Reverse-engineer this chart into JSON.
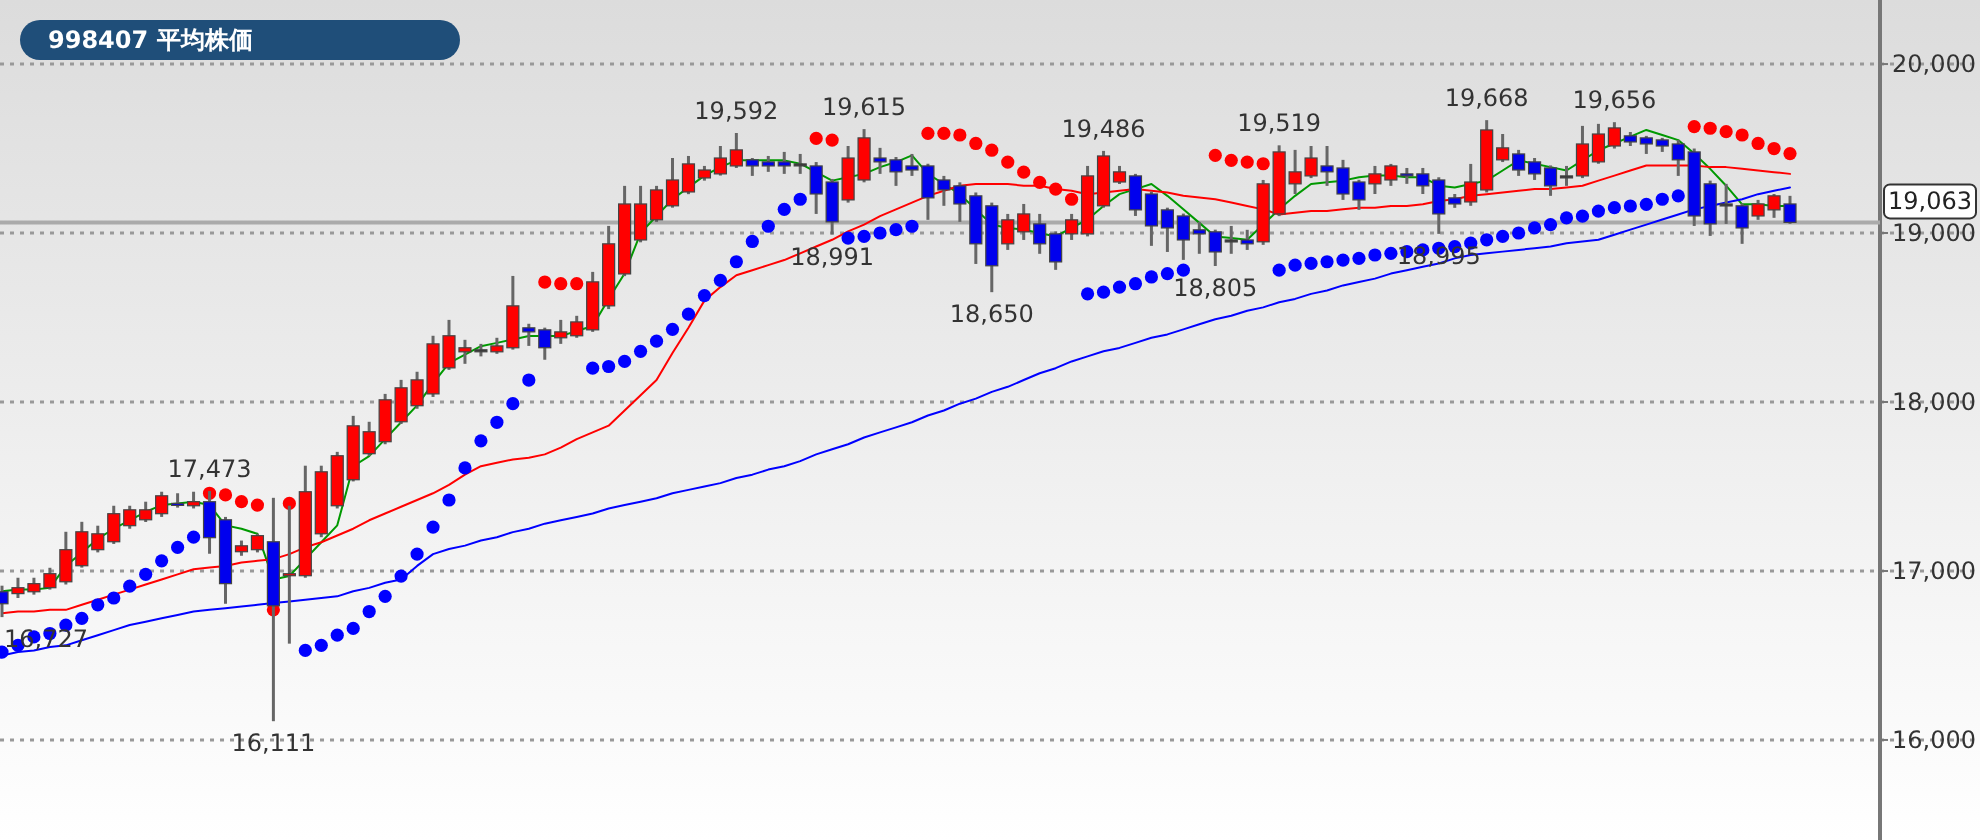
{
  "chart_data": {
    "type": "candlestick",
    "title": "998407 平均株価",
    "categories": [
      null,
      null,
      null,
      null,
      null,
      null,
      null,
      null,
      null,
      null,
      null,
      null,
      null,
      null,
      null,
      null,
      null,
      null,
      null,
      null,
      null,
      null,
      null,
      null,
      null,
      null,
      null,
      null,
      null,
      null,
      null,
      null,
      null,
      null,
      null,
      null,
      null,
      null,
      null,
      null,
      null,
      null,
      null,
      null,
      null,
      null,
      null,
      null,
      null,
      null,
      null,
      null,
      null,
      null,
      null,
      null,
      null,
      null,
      null,
      null,
      null,
      null,
      null,
      null,
      null,
      null,
      null,
      null,
      null,
      null,
      null,
      null,
      null,
      null,
      null,
      null,
      null,
      null,
      null,
      null,
      null,
      null,
      null,
      null,
      null,
      null,
      null,
      null,
      null,
      null,
      null,
      null,
      null,
      null,
      null,
      null,
      null,
      null,
      null,
      null,
      null,
      null,
      null,
      null,
      null,
      null,
      null,
      null,
      null,
      null,
      null,
      null,
      null
    ],
    "ohlc": [
      [
        16877,
        16913,
        16727,
        16806
      ],
      [
        16866,
        16960,
        16840,
        16901
      ],
      [
        16877,
        16960,
        16860,
        16925
      ],
      [
        16901,
        17019,
        16890,
        16984
      ],
      [
        16936,
        17232,
        16920,
        17126
      ],
      [
        17031,
        17291,
        17020,
        17232
      ],
      [
        17126,
        17268,
        17110,
        17220
      ],
      [
        17173,
        17386,
        17160,
        17339
      ],
      [
        17268,
        17386,
        17250,
        17362
      ],
      [
        17303,
        17410,
        17290,
        17362
      ],
      [
        17339,
        17469,
        17320,
        17445
      ],
      [
        17400,
        17460,
        17375,
        17398
      ],
      [
        17386,
        17469,
        17370,
        17410
      ],
      [
        17410,
        17473,
        17102,
        17197
      ],
      [
        17303,
        17320,
        16806,
        16925
      ],
      [
        17114,
        17180,
        17090,
        17149
      ],
      [
        17126,
        17220,
        17110,
        17209
      ],
      [
        17173,
        17433,
        16111,
        16794
      ],
      [
        16972,
        17386,
        16570,
        16984
      ],
      [
        16972,
        17623,
        16960,
        17469
      ],
      [
        17220,
        17623,
        17200,
        17587
      ],
      [
        17386,
        17705,
        17370,
        17682
      ],
      [
        17540,
        17918,
        17530,
        17859
      ],
      [
        17694,
        17883,
        17680,
        17824
      ],
      [
        17765,
        18048,
        17750,
        18013
      ],
      [
        17883,
        18131,
        17870,
        18084
      ],
      [
        17978,
        18179,
        17960,
        18131
      ],
      [
        18048,
        18392,
        18030,
        18344
      ],
      [
        18202,
        18486,
        18190,
        18392
      ],
      [
        18297,
        18368,
        18226,
        18321
      ],
      [
        18309,
        18344,
        18270,
        18309
      ],
      [
        18297,
        18380,
        18285,
        18332
      ],
      [
        18321,
        18746,
        18310,
        18569
      ],
      [
        18439,
        18463,
        18332,
        18415
      ],
      [
        18427,
        18440,
        18250,
        18321
      ],
      [
        18380,
        18486,
        18344,
        18415
      ],
      [
        18392,
        18510,
        18380,
        18474
      ],
      [
        18427,
        18770,
        18415,
        18711
      ],
      [
        18569,
        19042,
        18550,
        18936
      ],
      [
        18758,
        19279,
        18745,
        19172
      ],
      [
        18959,
        19279,
        18945,
        19172
      ],
      [
        19078,
        19279,
        19065,
        19255
      ],
      [
        19161,
        19444,
        19150,
        19314
      ],
      [
        19243,
        19456,
        19230,
        19409
      ],
      [
        19326,
        19397,
        19310,
        19373
      ],
      [
        19350,
        19515,
        19340,
        19444
      ],
      [
        19397,
        19592,
        19385,
        19492
      ],
      [
        19433,
        19444,
        19338,
        19397
      ],
      [
        19421,
        19456,
        19362,
        19397
      ],
      [
        19421,
        19480,
        19350,
        19397
      ],
      [
        19409,
        19468,
        19350,
        19409
      ],
      [
        19397,
        19420,
        19113,
        19231
      ],
      [
        19302,
        19320,
        18991,
        19066
      ],
      [
        19196,
        19515,
        19180,
        19444
      ],
      [
        19314,
        19615,
        19300,
        19563
      ],
      [
        19444,
        19504,
        19350,
        19421
      ],
      [
        19433,
        19450,
        19279,
        19362
      ],
      [
        19397,
        19468,
        19338,
        19373
      ],
      [
        19397,
        19410,
        19078,
        19208
      ],
      [
        19314,
        19338,
        19161,
        19255
      ],
      [
        19279,
        19300,
        19066,
        19172
      ],
      [
        19220,
        19240,
        18817,
        18936
      ],
      [
        19161,
        19180,
        18650,
        18806
      ],
      [
        18936,
        19113,
        18900,
        19078
      ],
      [
        19007,
        19172,
        18959,
        19113
      ],
      [
        19054,
        19113,
        18877,
        18936
      ],
      [
        18995,
        19010,
        18782,
        18829
      ],
      [
        18995,
        19113,
        18959,
        19078
      ],
      [
        18995,
        19397,
        18980,
        19338
      ],
      [
        19161,
        19486,
        19150,
        19456
      ],
      [
        19302,
        19397,
        19290,
        19362
      ],
      [
        19338,
        19350,
        19101,
        19137
      ],
      [
        19231,
        19245,
        18924,
        19042
      ],
      [
        19137,
        19150,
        18888,
        19030
      ],
      [
        19101,
        19115,
        18841,
        18959
      ],
      [
        19019,
        19066,
        18877,
        18995
      ],
      [
        19007,
        19020,
        18805,
        18888
      ],
      [
        18959,
        19042,
        18877,
        18959
      ],
      [
        18959,
        19019,
        18900,
        18936
      ],
      [
        18948,
        19314,
        18930,
        19291
      ],
      [
        19113,
        19519,
        19100,
        19480
      ],
      [
        19291,
        19492,
        19231,
        19362
      ],
      [
        19338,
        19515,
        19325,
        19444
      ],
      [
        19397,
        19515,
        19279,
        19362
      ],
      [
        19385,
        19433,
        19196,
        19231
      ],
      [
        19302,
        19315,
        19137,
        19196
      ],
      [
        19291,
        19397,
        19231,
        19350
      ],
      [
        19314,
        19409,
        19279,
        19397
      ],
      [
        19350,
        19385,
        19291,
        19338
      ],
      [
        19350,
        19385,
        19231,
        19279
      ],
      [
        19314,
        19330,
        18995,
        19113
      ],
      [
        19208,
        19231,
        19149,
        19172
      ],
      [
        19184,
        19409,
        19161,
        19302
      ],
      [
        19255,
        19668,
        19240,
        19610
      ],
      [
        19433,
        19586,
        19420,
        19504
      ],
      [
        19468,
        19492,
        19338,
        19373
      ],
      [
        19421,
        19444,
        19314,
        19350
      ],
      [
        19385,
        19400,
        19220,
        19279
      ],
      [
        19338,
        19397,
        19279,
        19338
      ],
      [
        19338,
        19634,
        19325,
        19527
      ],
      [
        19421,
        19646,
        19410,
        19586
      ],
      [
        19515,
        19656,
        19500,
        19622
      ],
      [
        19575,
        19598,
        19515,
        19539
      ],
      [
        19563,
        19575,
        19468,
        19527
      ],
      [
        19551,
        19563,
        19480,
        19515
      ],
      [
        19527,
        19551,
        19338,
        19433
      ],
      [
        19480,
        19500,
        19042,
        19101
      ],
      [
        19291,
        19310,
        18983,
        19054
      ],
      [
        19172,
        19291,
        19054,
        19172
      ],
      [
        19161,
        19175,
        18936,
        19030
      ],
      [
        19101,
        19196,
        19078,
        19172
      ],
      [
        19137,
        19231,
        19090,
        19220
      ],
      [
        19172,
        19220,
        19054,
        19063
      ]
    ],
    "series": [
      {
        "type": "line",
        "marker": "none",
        "color": "#009900",
        "values": [
          16880,
          16890,
          16890,
          16900,
          17030,
          17110,
          17190,
          17250,
          17300,
          17350,
          17390,
          17400,
          17410,
          17390,
          17270,
          17250,
          17220,
          16950,
          16970,
          17070,
          17170,
          17270,
          17620,
          17680,
          17780,
          17880,
          17980,
          18110,
          18230,
          18280,
          18330,
          18350,
          18370,
          18390,
          18390,
          18390,
          18420,
          18450,
          18610,
          18760,
          19000,
          19100,
          19200,
          19270,
          19340,
          19390,
          19430,
          19430,
          19430,
          19430,
          19410,
          19360,
          19310,
          19330,
          19350,
          19390,
          19420,
          19460,
          19350,
          19290,
          19230,
          19140,
          19050,
          19030,
          19020,
          19000,
          18980,
          19030,
          19080,
          19160,
          19230,
          19260,
          19290,
          19220,
          19140,
          19060,
          18980,
          18970,
          18960,
          19050,
          19140,
          19220,
          19290,
          19300,
          19310,
          19330,
          19340,
          19340,
          19330,
          19330,
          19280,
          19270,
          19290,
          19310,
          19370,
          19430,
          19410,
          19390,
          19370,
          19430,
          19490,
          19530,
          19570,
          19610,
          19580,
          19550,
          19470,
          19380,
          19280,
          19170,
          19170,
          19160,
          19160
        ]
      },
      {
        "type": "line",
        "marker": "none",
        "color": "#ff0000",
        "values": [
          16750,
          16760,
          16760,
          16770,
          16770,
          16800,
          16830,
          16860,
          16890,
          16920,
          16950,
          16980,
          17010,
          17020,
          17030,
          17050,
          17060,
          17070,
          17100,
          17140,
          17170,
          17210,
          17250,
          17300,
          17340,
          17380,
          17420,
          17460,
          17510,
          17570,
          17620,
          17640,
          17660,
          17670,
          17690,
          17730,
          17780,
          17820,
          17860,
          17950,
          18040,
          18130,
          18290,
          18440,
          18600,
          18680,
          18750,
          18780,
          18810,
          18840,
          18880,
          18920,
          18960,
          19010,
          19050,
          19100,
          19140,
          19180,
          19220,
          19250,
          19280,
          19290,
          19290,
          19290,
          19280,
          19280,
          19260,
          19250,
          19230,
          19240,
          19250,
          19260,
          19250,
          19240,
          19220,
          19210,
          19200,
          19180,
          19160,
          19140,
          19110,
          19120,
          19130,
          19130,
          19140,
          19150,
          19150,
          19160,
          19160,
          19170,
          19190,
          19200,
          19220,
          19230,
          19240,
          19250,
          19260,
          19260,
          19270,
          19280,
          19310,
          19340,
          19370,
          19400,
          19400,
          19400,
          19400,
          19390,
          19390,
          19380,
          19370,
          19360,
          19350
        ]
      },
      {
        "type": "line",
        "marker": "none",
        "color": "#0000ff",
        "values": [
          16500,
          16520,
          16530,
          16550,
          16560,
          16590,
          16620,
          16650,
          16680,
          16700,
          16720,
          16740,
          16760,
          16770,
          16780,
          16790,
          16800,
          16810,
          16820,
          16830,
          16840,
          16850,
          16880,
          16900,
          16930,
          16950,
          17030,
          17100,
          17130,
          17150,
          17180,
          17200,
          17230,
          17250,
          17280,
          17300,
          17320,
          17340,
          17370,
          17390,
          17410,
          17430,
          17460,
          17480,
          17500,
          17520,
          17550,
          17570,
          17600,
          17620,
          17650,
          17690,
          17720,
          17750,
          17790,
          17820,
          17850,
          17880,
          17920,
          17950,
          17990,
          18020,
          18060,
          18090,
          18130,
          18170,
          18200,
          18240,
          18270,
          18300,
          18320,
          18350,
          18380,
          18400,
          18430,
          18460,
          18490,
          18510,
          18540,
          18560,
          18590,
          18610,
          18640,
          18660,
          18690,
          18710,
          18730,
          18760,
          18780,
          18800,
          18820,
          18850,
          18870,
          18880,
          18890,
          18900,
          18910,
          18920,
          18940,
          18950,
          18960,
          18990,
          19020,
          19050,
          19080,
          19110,
          19140,
          19160,
          19180,
          19200,
          19230,
          19250,
          19270
        ]
      },
      {
        "type": "scatter",
        "marker": "circle",
        "color": "#0000ff",
        "values": [
          16520,
          16560,
          16610,
          16630,
          16680,
          16720,
          16800,
          16840,
          16910,
          16980,
          17060,
          17140,
          17200,
          null,
          null,
          null,
          null,
          null,
          null,
          16530,
          16560,
          16620,
          16660,
          16760,
          16850,
          16970,
          17100,
          17260,
          17420,
          17610,
          17770,
          17880,
          17990,
          18130,
          null,
          null,
          null,
          18200,
          18210,
          18240,
          18300,
          18360,
          18430,
          18520,
          18630,
          18720,
          18830,
          18950,
          19040,
          19140,
          19200,
          null,
          null,
          18970,
          18980,
          19000,
          19020,
          19040,
          null,
          null,
          null,
          null,
          null,
          null,
          null,
          null,
          null,
          null,
          18640,
          18650,
          18680,
          18700,
          18740,
          18760,
          18780,
          null,
          null,
          null,
          null,
          null,
          18780,
          18810,
          18820,
          18830,
          18840,
          18850,
          18870,
          18880,
          18890,
          18900,
          18910,
          18920,
          18940,
          18960,
          18980,
          19000,
          19030,
          19050,
          19090,
          19100,
          19130,
          19150,
          19160,
          19170,
          19200,
          19220,
          null,
          null,
          null,
          null,
          null,
          null,
          null
        ]
      },
      {
        "type": "scatter",
        "marker": "circle",
        "color": "#ff0000",
        "values": [
          null,
          null,
          null,
          null,
          null,
          null,
          null,
          null,
          null,
          null,
          null,
          null,
          null,
          17460,
          17450,
          17410,
          17390,
          16770,
          17400,
          null,
          null,
          null,
          null,
          null,
          null,
          null,
          null,
          null,
          null,
          null,
          null,
          null,
          null,
          null,
          18710,
          18700,
          18700,
          null,
          null,
          null,
          null,
          null,
          null,
          null,
          null,
          null,
          null,
          null,
          null,
          null,
          null,
          19560,
          19550,
          null,
          null,
          null,
          null,
          null,
          19590,
          19590,
          19580,
          19530,
          19490,
          19420,
          19360,
          19300,
          19260,
          19200,
          null,
          null,
          null,
          null,
          null,
          null,
          null,
          null,
          19460,
          19430,
          19420,
          19410,
          null,
          null,
          null,
          null,
          null,
          null,
          null,
          null,
          null,
          null,
          null,
          null,
          null,
          null,
          null,
          null,
          null,
          null,
          null,
          null,
          null,
          null,
          null,
          null,
          null,
          null,
          19630,
          19620,
          19600,
          19580,
          19530,
          19500,
          19470
        ]
      }
    ],
    "ylim": [
      15408,
      20379
    ],
    "yticks": [
      {
        "value": 16000,
        "label": "16,000"
      },
      {
        "value": 17000,
        "label": "17,000"
      },
      {
        "value": 18000,
        "label": "18,000"
      },
      {
        "value": 19000,
        "label": "19,000"
      },
      {
        "value": 20000,
        "label": "20,000"
      }
    ],
    "grid": "y",
    "ref_lines": [
      {
        "axis": "y",
        "value": 19063,
        "label": "19,063",
        "color": "#aaaaaa"
      }
    ],
    "annotations": [
      {
        "text": "16,727",
        "y": 16727
      },
      {
        "text": "17,473",
        "y": 17473
      },
      {
        "text": "16,111",
        "y": 16111
      },
      {
        "text": "19,592",
        "y": 19592
      },
      {
        "text": "19,615",
        "y": 19615
      },
      {
        "text": "18,991",
        "y": 18991
      },
      {
        "text": "18,650",
        "y": 18650
      },
      {
        "text": "19,486",
        "y": 19486
      },
      {
        "text": "19,519",
        "y": 19519
      },
      {
        "text": "18,805",
        "y": 18805
      },
      {
        "text": "18,995",
        "y": 18995
      },
      {
        "text": "19,668",
        "y": 19668
      },
      {
        "text": "19,656",
        "y": 19656
      }
    ]
  }
}
